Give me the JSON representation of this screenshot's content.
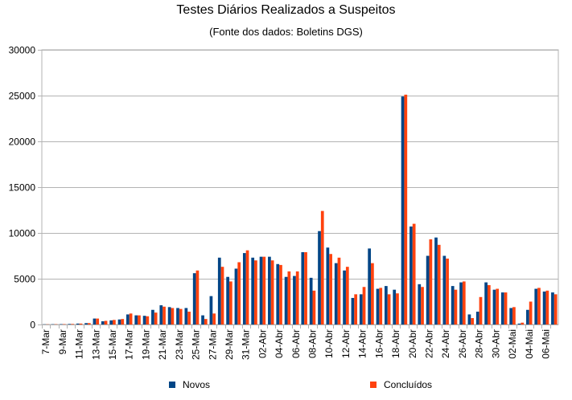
{
  "chart_data": {
    "type": "bar",
    "title": "Testes Diários Realizados a Suspeitos",
    "subtitle": "(Fonte dos dados: Boletins DGS)",
    "ylim": [
      0,
      30000
    ],
    "yticks": [
      "0",
      "5000",
      "10000",
      "15000",
      "20000",
      "25000",
      "30000"
    ],
    "grid": true,
    "legend_position": "bottom",
    "categories": [
      "07-Mar",
      "08-Mar",
      "09-Mar",
      "10-Mar",
      "11-Mar",
      "12-Mar",
      "13-Mar",
      "14-Mar",
      "15-Mar",
      "16-Mar",
      "17-Mar",
      "18-Mar",
      "19-Mar",
      "20-Mar",
      "21-Mar",
      "22-Mar",
      "23-Mar",
      "24-Mar",
      "25-Mar",
      "26-Mar",
      "27-Mar",
      "28-Mar",
      "29-Mar",
      "30-Mar",
      "31-Mar",
      "01-Abr",
      "02-Abr",
      "03-Abr",
      "04-Abr",
      "05-Abr",
      "06-Abr",
      "07-Abr",
      "08-Abr",
      "09-Abr",
      "10-Abr",
      "11-Abr",
      "12-Abr",
      "13-Abr",
      "14-Abr",
      "15-Abr",
      "16-Abr",
      "17-Abr",
      "18-Abr",
      "19-Abr",
      "20-Abr",
      "21-Abr",
      "22-Abr",
      "23-Abr",
      "24-Abr",
      "25-Abr",
      "26-Abr",
      "27-Abr",
      "28-Abr",
      "29-Abr",
      "30-Abr",
      "01-Mai",
      "02-Mai",
      "03-Mai",
      "04-Mai",
      "05-Mai",
      "06-Mai",
      "07-Mai"
    ],
    "xtick_labels": [
      "7-Mar",
      "",
      "9-Mar",
      "",
      "11-Mar",
      "",
      "13-Mar",
      "",
      "15-Mar",
      "",
      "17-Mar",
      "",
      "19-Mar",
      "",
      "21-Mar",
      "",
      "23-Mar",
      "",
      "25-Mar",
      "",
      "27-Mar",
      "",
      "29-Mar",
      "",
      "31-Mar",
      "",
      "02-Abr",
      "",
      "04-Abr",
      "",
      "06-Abr",
      "",
      "08-Abr",
      "",
      "10-Abr",
      "",
      "12-Abr",
      "",
      "14-Abr",
      "",
      "16-Abr",
      "",
      "18-Abr",
      "",
      "20-Abr",
      "",
      "22-Abr",
      "",
      "24-Abr",
      "",
      "26-Abr",
      "",
      "28-Abr",
      "",
      "30-Abr",
      "",
      "02-Mai",
      "",
      "04-Mai",
      "",
      "06-Mai",
      ""
    ],
    "series": [
      {
        "name": "Novos",
        "color": "#004586",
        "values": [
          20,
          30,
          40,
          60,
          100,
          150,
          650,
          350,
          450,
          550,
          1100,
          1000,
          950,
          1600,
          2100,
          1900,
          1800,
          1800,
          5600,
          1000,
          3100,
          7300,
          5200,
          6100,
          7800,
          7300,
          7400,
          7400,
          6600,
          5200,
          5300,
          7900,
          5100,
          10200,
          8400,
          6700,
          5900,
          2900,
          3300,
          8300,
          3900,
          4200,
          3800,
          24900,
          10700,
          4400,
          7500,
          9500,
          7500,
          4200,
          4600,
          1100,
          1400,
          4600,
          3800,
          3500,
          1800,
          100,
          1600,
          3900,
          3600,
          3500
        ],
        "_comment": "bar heights estimated from gridlines"
      },
      {
        "name": "Concluídos",
        "color": "#ff420e",
        "values": [
          20,
          30,
          40,
          60,
          100,
          150,
          650,
          400,
          500,
          600,
          1200,
          1000,
          900,
          1300,
          1950,
          1800,
          1700,
          1400,
          5900,
          600,
          1200,
          6300,
          4700,
          6800,
          8100,
          7000,
          7400,
          7000,
          6500,
          5800,
          5800,
          7900,
          3700,
          12400,
          7700,
          7300,
          6300,
          3300,
          4100,
          6700,
          4000,
          3300,
          3400,
          25100,
          11000,
          4100,
          9300,
          8700,
          7200,
          3800,
          4700,
          700,
          3000,
          4300,
          3900,
          3500,
          1900,
          200,
          2500,
          4000,
          3700,
          3300
        ]
      }
    ]
  }
}
